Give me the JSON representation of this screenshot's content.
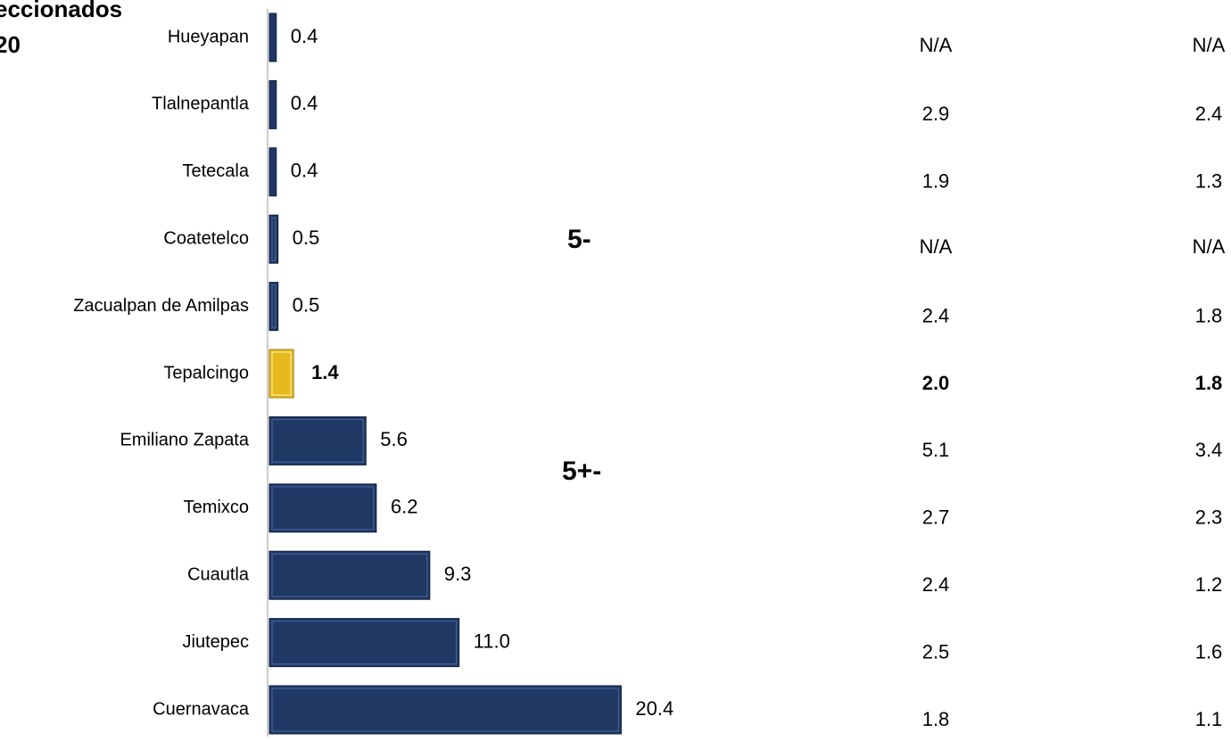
{
  "chart_data": {
    "type": "bar",
    "title": "eccionados",
    "subtitle": "20",
    "categories": [
      "Hueyapan",
      "Tlalnepantla",
      "Tetecala",
      "Coatetelco",
      "Zacualpan de Amilpas",
      "Tepalcingo",
      "Emiliano Zapata",
      "Temixco",
      "Cuautla",
      "Jiutepec",
      "Cuernavaca"
    ],
    "values": [
      0.4,
      0.4,
      0.4,
      0.5,
      0.5,
      1.4,
      5.6,
      6.2,
      9.3,
      11.0,
      20.4
    ],
    "value_labels": [
      "0.4",
      "0.4",
      "0.4",
      "0.5",
      "0.5",
      "1.4",
      "5.6",
      "6.2",
      "9.3",
      "11.0",
      "20.4"
    ],
    "color": "#1f3864",
    "colors": [
      "#1f3864",
      "#1f3864",
      "#1f3864",
      "#1f3864",
      "#1f3864",
      "#e6b91e",
      "#1f3864",
      "#1f3864",
      "#1f3864",
      "#1f3864",
      "#1f3864"
    ],
    "xlim": [
      0,
      21
    ],
    "annotations": [
      "5-",
      "5+-"
    ],
    "table_columns": [
      [
        "N/A",
        "2.9",
        "1.9",
        "N/A",
        "2.4",
        "2.0",
        "5.1",
        "2.7",
        "2.4",
        "2.5",
        "1.8"
      ],
      [
        "N/A",
        "2.4",
        "1.3",
        "N/A",
        "1.8",
        "1.8",
        "3.4",
        "2.3",
        "1.2",
        "1.6",
        "1.1"
      ]
    ]
  }
}
